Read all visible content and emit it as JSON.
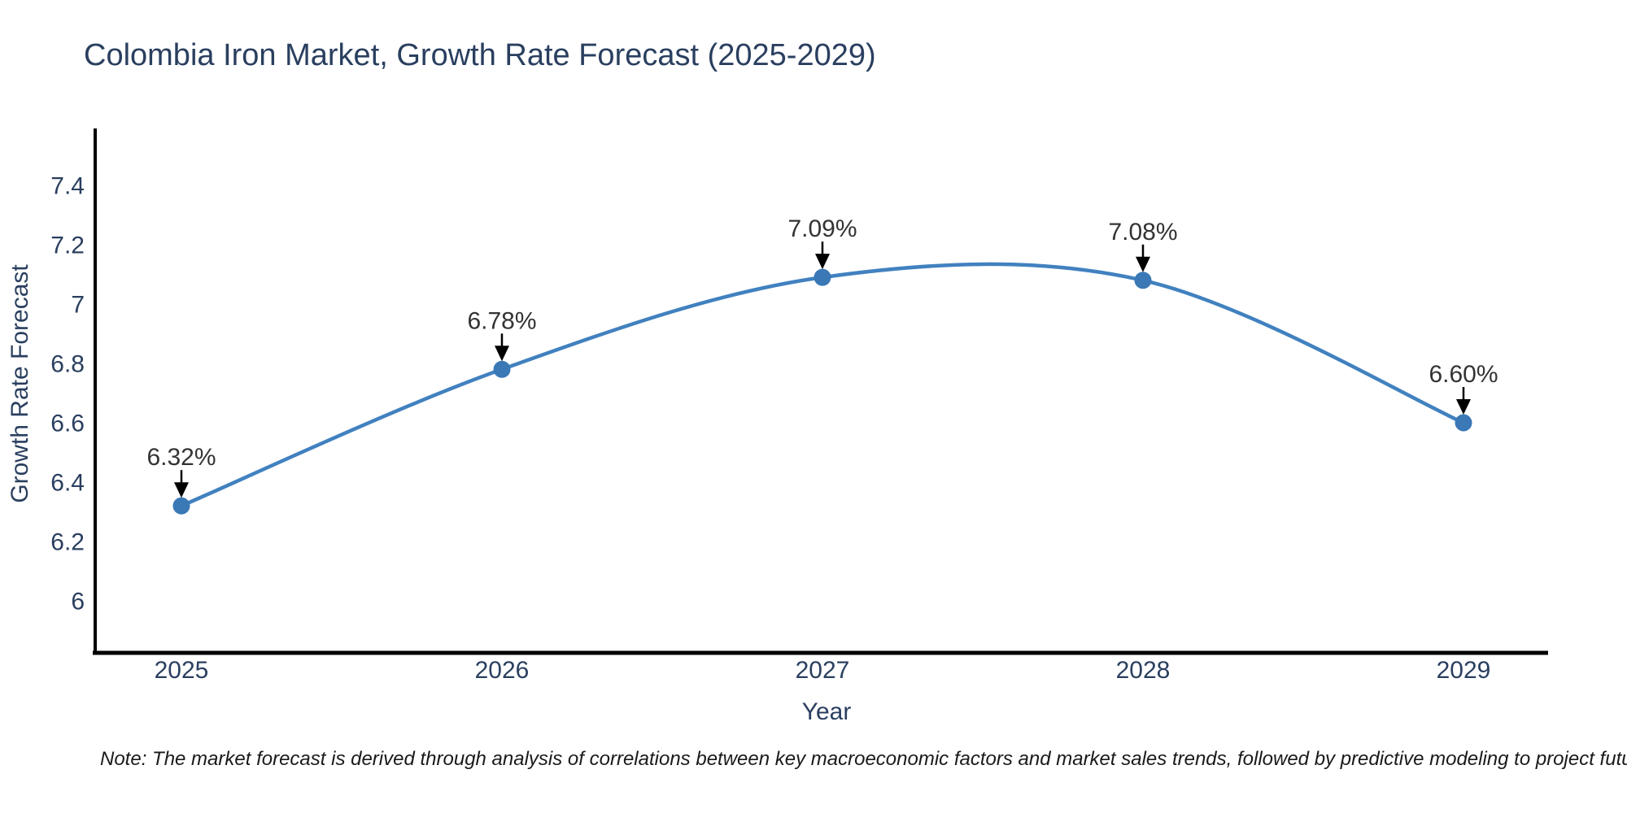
{
  "title": "Colombia Iron Market, Growth Rate Forecast (2025-2029)",
  "note": "Note: The market forecast is derived through analysis of correlations between key macroeconomic factors and market sales trends, followed by predictive modeling to project future sales",
  "chart_data": {
    "type": "line",
    "line_shape": "spline",
    "title": "Colombia Iron Market, Growth Rate Forecast (2025-2029)",
    "xlabel": "Year",
    "ylabel": "Growth Rate Forecast",
    "categories": [
      "2025",
      "2026",
      "2027",
      "2028",
      "2029"
    ],
    "x": [
      2025,
      2026,
      2027,
      2028,
      2029
    ],
    "values": [
      6.32,
      6.78,
      7.09,
      7.08,
      6.6
    ],
    "point_labels": [
      "6.32%",
      "6.78%",
      "7.09%",
      "7.08%",
      "6.60%"
    ],
    "y_ticks": [
      6,
      6.2,
      6.4,
      6.6,
      6.8,
      7,
      7.2,
      7.4
    ],
    "y_tick_labels": [
      "6",
      "6.2",
      "6.4",
      "6.6",
      "6.8",
      "7",
      "7.2",
      "7.4"
    ],
    "ylim": [
      5.82,
      7.58
    ],
    "grid": false,
    "legend": "none",
    "annotation_style": "value label with downward black arrow to marker",
    "colors": {
      "line": "#4181bf",
      "marker": "#3a78b6",
      "axis_line": "#000000",
      "title_text": "#2a3f5f",
      "tick_text": "#2a3f5f",
      "annotation_text": "#333333",
      "arrow": "#000000",
      "background": "#ffffff"
    }
  }
}
